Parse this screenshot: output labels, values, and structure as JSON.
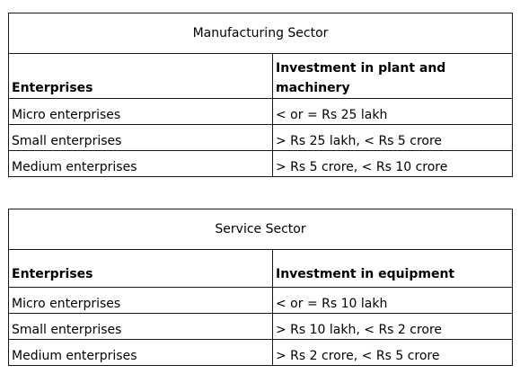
{
  "tables": [
    {
      "title": "Manufacturing Sector",
      "headers": [
        "Enterprises",
        "Investment in plant and machinery"
      ],
      "rows": [
        [
          "Micro enterprises",
          "< or = Rs 25 lakh"
        ],
        [
          "Small enterprises",
          "> Rs 25 lakh, < Rs 5 crore"
        ],
        [
          "Medium enterprises",
          "> Rs 5 crore, < Rs 10 crore"
        ]
      ]
    },
    {
      "title": "Service Sector",
      "headers": [
        "Enterprises",
        "Investment in equipment"
      ],
      "rows": [
        [
          "Micro enterprises",
          "< or = Rs 10 lakh"
        ],
        [
          "Small enterprises",
          "> Rs 10 lakh, < Rs 2 crore"
        ],
        [
          "Medium enterprises",
          "> Rs 2 crore, < Rs 5 crore"
        ]
      ]
    }
  ]
}
